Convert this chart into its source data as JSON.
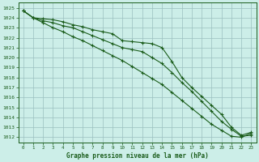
{
  "title": "Graphe pression niveau de la mer (hPa)",
  "bg_color": "#cceee8",
  "grid_color": "#9bbfbf",
  "line_color": "#1a5c1a",
  "xlim": [
    -0.5,
    23.5
  ],
  "ylim": [
    1011.5,
    1025.5
  ],
  "xticks": [
    0,
    1,
    2,
    3,
    4,
    5,
    6,
    7,
    8,
    9,
    10,
    11,
    12,
    13,
    14,
    15,
    16,
    17,
    18,
    19,
    20,
    21,
    22,
    23
  ],
  "yticks": [
    1012,
    1013,
    1014,
    1015,
    1016,
    1017,
    1018,
    1019,
    1020,
    1021,
    1022,
    1023,
    1024,
    1025
  ],
  "series1_x": [
    0,
    1,
    2,
    3,
    4,
    5,
    6,
    7,
    8,
    9,
    10,
    11,
    12,
    13,
    14,
    15,
    16,
    17,
    18,
    19,
    20,
    21,
    22,
    23
  ],
  "series1_y": [
    1024.7,
    1024.0,
    1023.9,
    1023.8,
    1023.6,
    1023.3,
    1023.1,
    1022.8,
    1022.6,
    1022.4,
    1021.7,
    1021.6,
    1021.5,
    1021.4,
    1021.0,
    1019.6,
    1018.0,
    1017.0,
    1016.1,
    1015.2,
    1014.3,
    1013.0,
    1012.2,
    1012.5
  ],
  "series2_x": [
    0,
    1,
    2,
    3,
    4,
    5,
    6,
    7,
    8,
    9,
    10,
    11,
    12,
    13,
    14,
    15,
    16,
    17,
    18,
    19,
    20,
    21,
    22,
    23
  ],
  "series2_y": [
    1024.7,
    1024.0,
    1023.7,
    1023.5,
    1023.2,
    1023.0,
    1022.6,
    1022.2,
    1021.8,
    1021.4,
    1021.0,
    1020.8,
    1020.6,
    1020.0,
    1019.4,
    1018.5,
    1017.5,
    1016.6,
    1015.6,
    1014.6,
    1013.6,
    1012.8,
    1012.1,
    1012.2
  ],
  "series3_x": [
    0,
    1,
    2,
    3,
    4,
    5,
    6,
    7,
    8,
    9,
    10,
    11,
    12,
    13,
    14,
    15,
    16,
    17,
    18,
    19,
    20,
    21,
    22,
    23
  ],
  "series3_y": [
    1024.7,
    1024.0,
    1023.5,
    1023.0,
    1022.6,
    1022.1,
    1021.7,
    1021.2,
    1020.7,
    1020.2,
    1019.7,
    1019.1,
    1018.5,
    1017.9,
    1017.3,
    1016.5,
    1015.7,
    1014.9,
    1014.1,
    1013.3,
    1012.7,
    1012.1,
    1012.0,
    1012.4
  ]
}
